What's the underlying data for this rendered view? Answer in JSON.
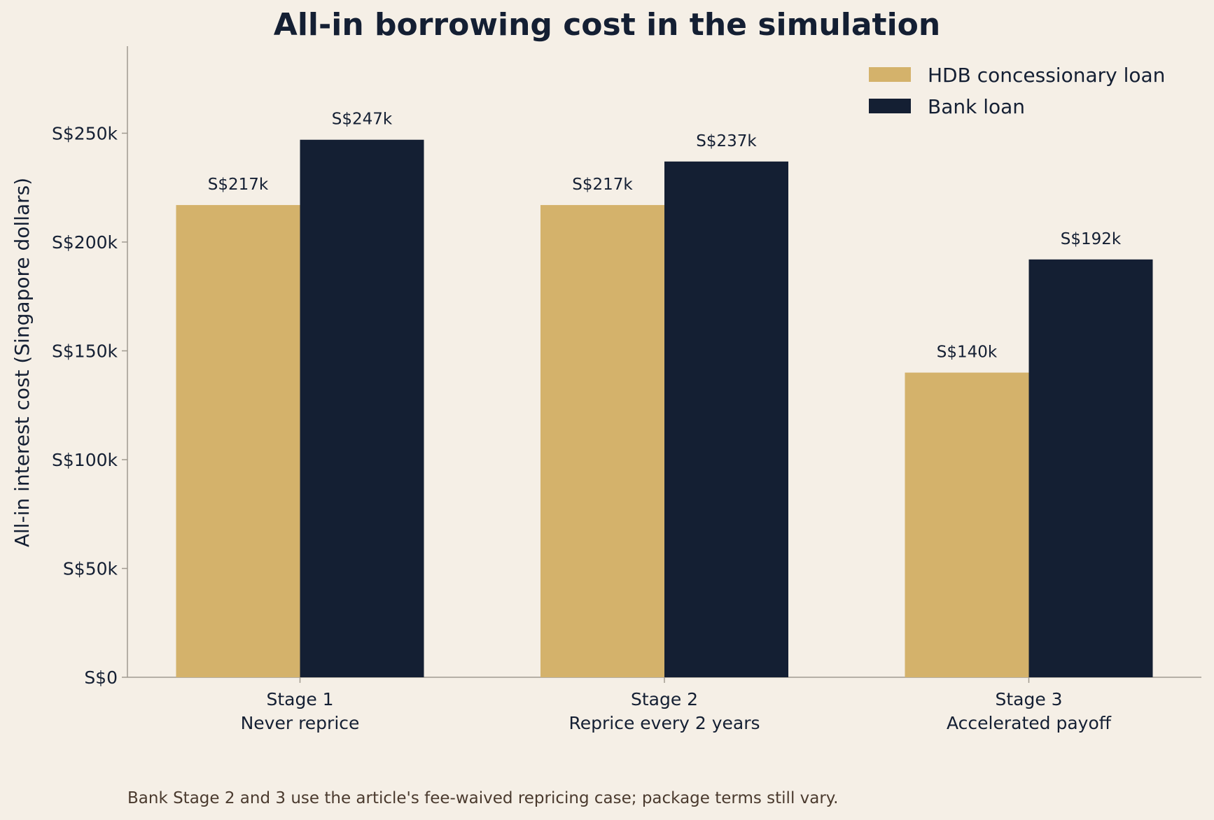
{
  "chart_data": {
    "type": "bar",
    "title": "All-in borrowing cost in the simulation",
    "ylabel": "All-in interest cost (Singapore dollars)",
    "xlabel": "",
    "categories": [
      [
        "Stage 1",
        "Never reprice"
      ],
      [
        "Stage 2",
        "Reprice every 2 years"
      ],
      [
        "Stage 3",
        "Accelerated payoff"
      ]
    ],
    "series": [
      {
        "name": "HDB concessionary loan",
        "color": "#d4b26b",
        "values": [
          217000,
          217000,
          140000
        ],
        "labels": [
          "S$217k",
          "S$217k",
          "S$140k"
        ]
      },
      {
        "name": "Bank loan",
        "color": "#141f33",
        "values": [
          247000,
          237000,
          192000
        ],
        "labels": [
          "S$247k",
          "S$237k",
          "S$192k"
        ]
      }
    ],
    "ylim": [
      0,
      290000
    ],
    "yticks": [
      0,
      50000,
      100000,
      150000,
      200000,
      250000
    ],
    "ytick_labels": [
      "S$0",
      "S$50k",
      "S$100k",
      "S$150k",
      "S$200k",
      "S$250k"
    ],
    "grid": false,
    "legend_position": "top-right",
    "footnote": "Bank Stage 2 and 3 use the article's fee-waived repricing case; package terms still vary."
  }
}
